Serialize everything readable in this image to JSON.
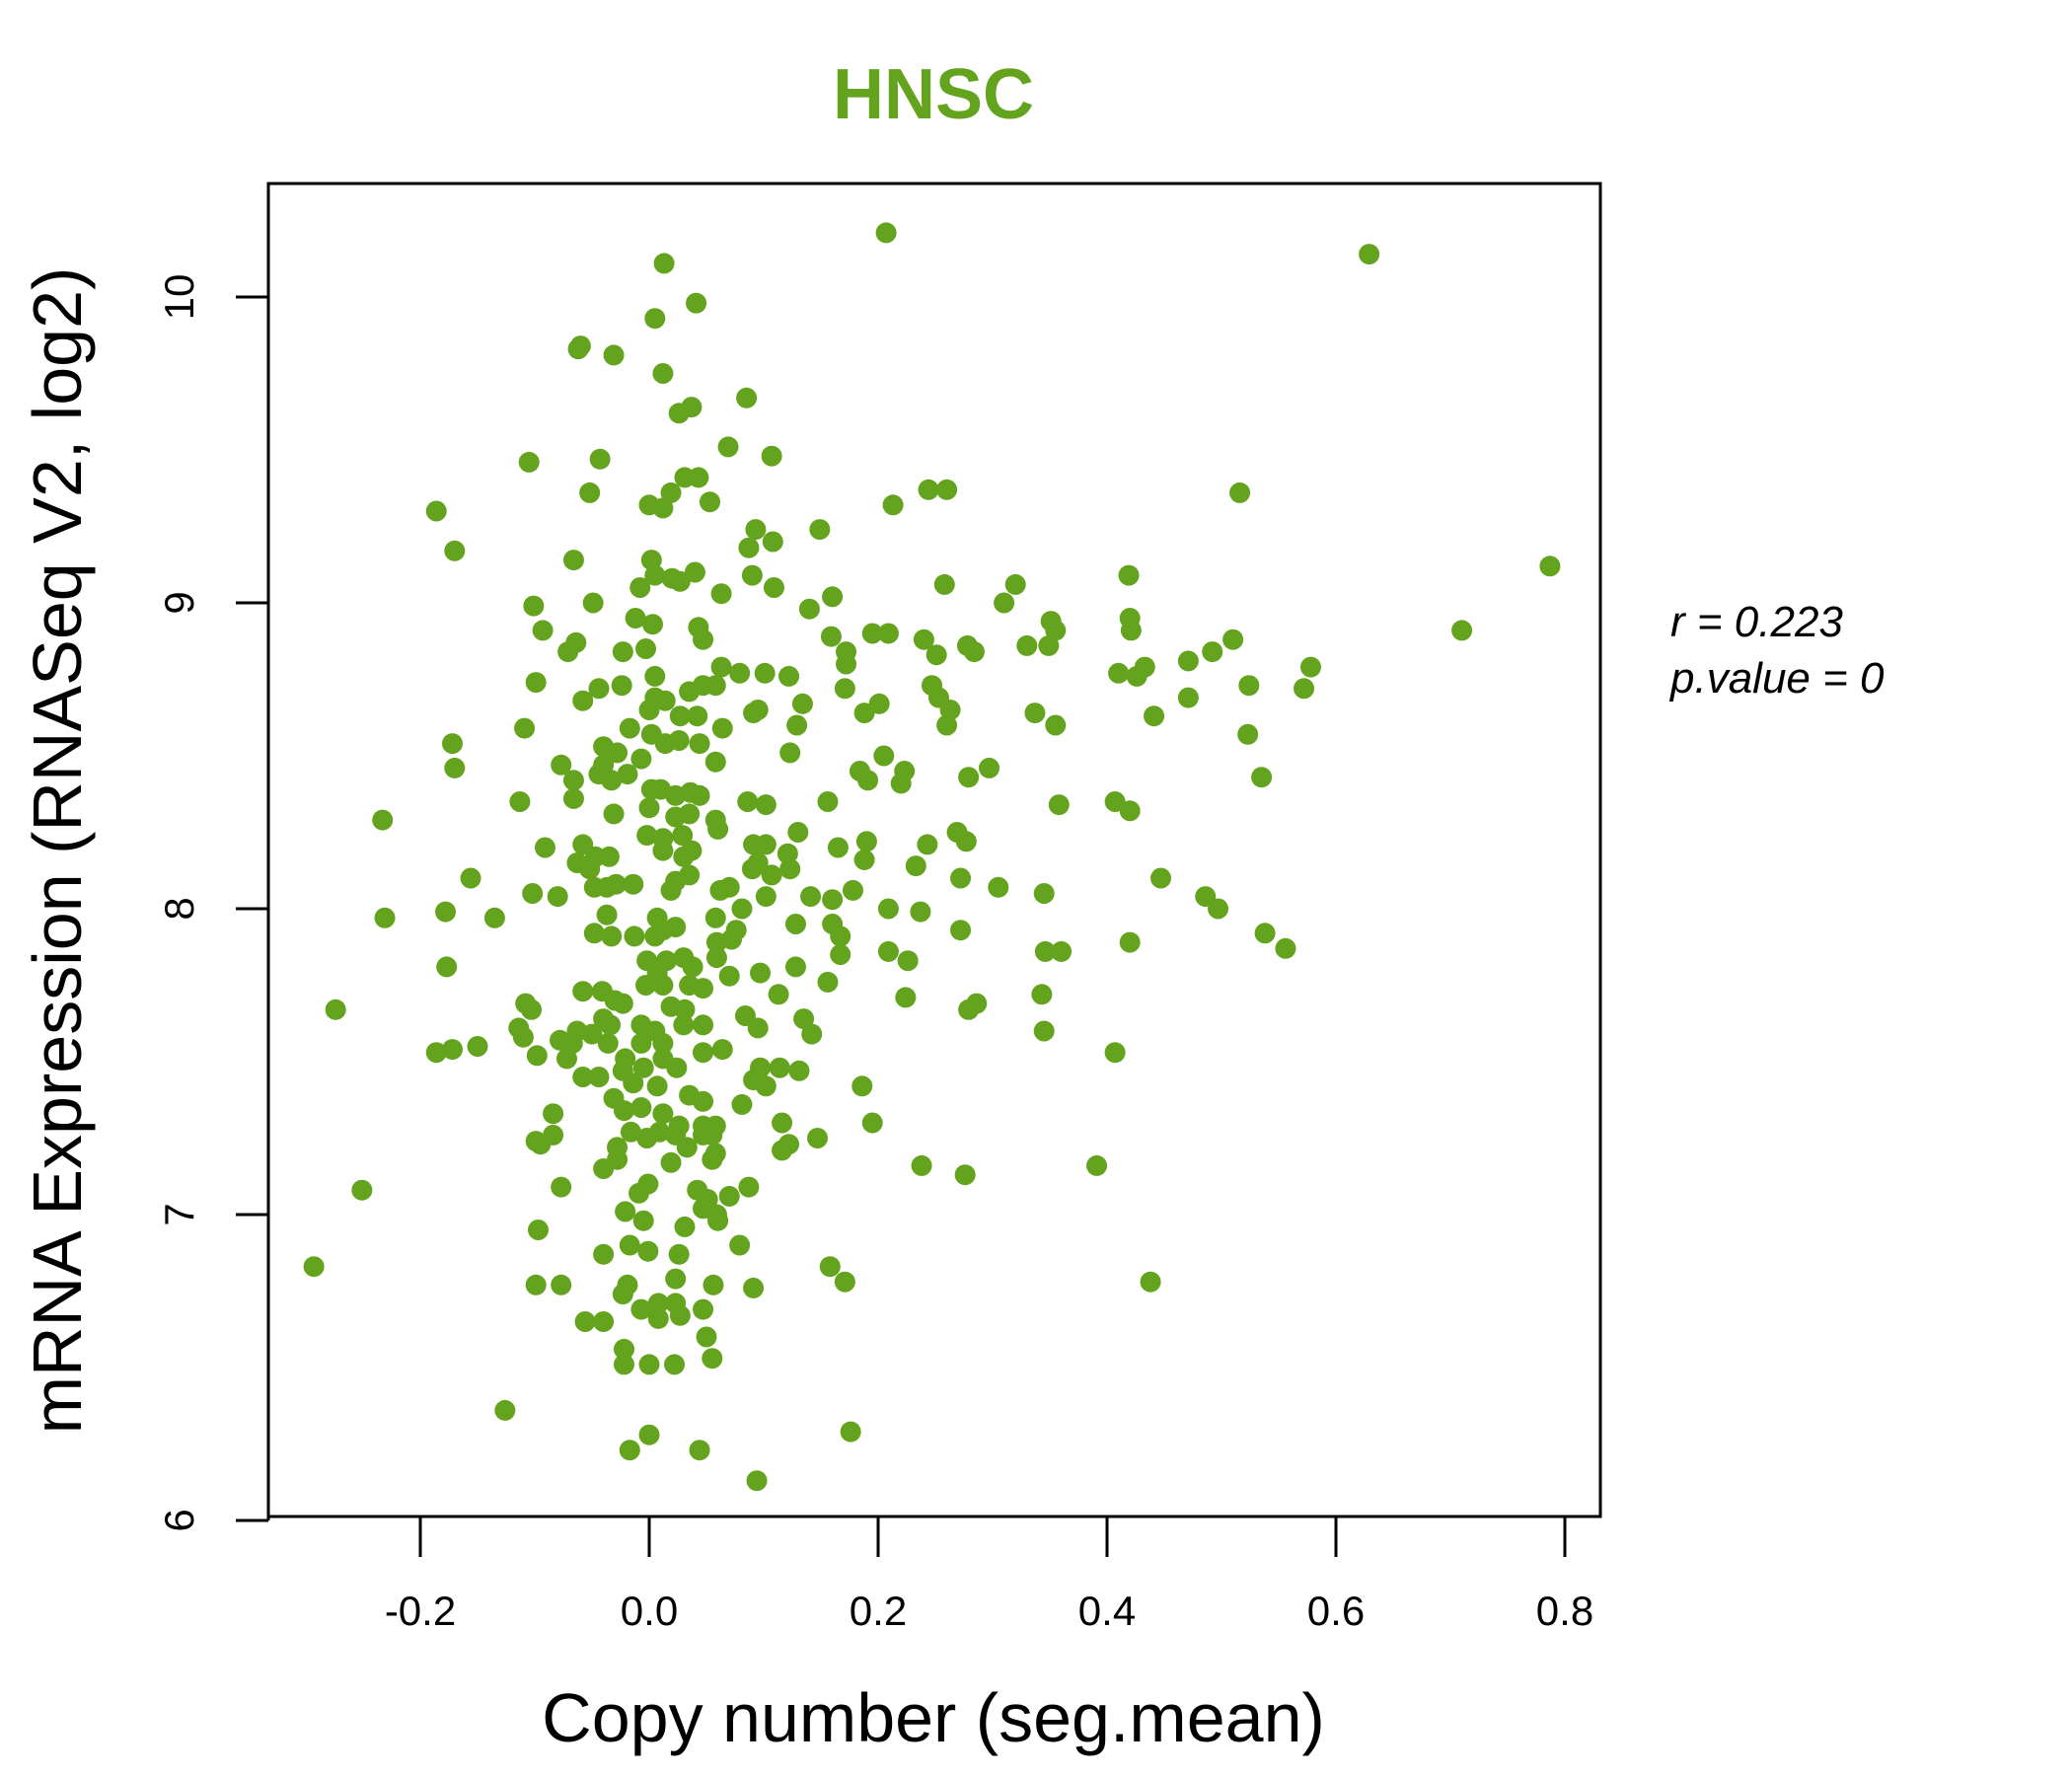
{
  "chart_data": {
    "type": "scatter",
    "title": "HNSC",
    "xlabel": "Copy number (seg.mean)",
    "ylabel": "mRNA Expression (RNASeq V2, log2)",
    "xlim": [
      -0.34,
      0.84
    ],
    "ylim": [
      6.0,
      10.4
    ],
    "x_ticks": [
      "-0.2",
      "0.0",
      "0.2",
      "0.4",
      "0.6",
      "0.8"
    ],
    "x_tick_values": [
      -0.2,
      0.0,
      0.2,
      0.4,
      0.6,
      0.8
    ],
    "y_ticks": [
      "6",
      "7",
      "8",
      "9",
      "10"
    ],
    "y_tick_values": [
      6,
      7,
      8,
      9,
      10
    ],
    "grid": false,
    "colors": {
      "title": "#64a31e",
      "points": "#64a31e"
    },
    "annotation": {
      "r_label": "r = 0.223",
      "p_label": "p.value = 0"
    },
    "points": [
      [
        0.629,
        10.14
      ],
      [
        0.207,
        10.21
      ],
      [
        0.013,
        10.11
      ],
      [
        0.041,
        9.98
      ],
      [
        0.005,
        9.93
      ],
      [
        -0.06,
        9.84
      ],
      [
        -0.062,
        9.83
      ],
      [
        -0.031,
        9.81
      ],
      [
        0.012,
        9.75
      ],
      [
        0.085,
        9.67
      ],
      [
        0.037,
        9.64
      ],
      [
        0.026,
        9.62
      ],
      [
        0.069,
        9.51
      ],
      [
        0.107,
        9.48
      ],
      [
        -0.105,
        9.46
      ],
      [
        -0.043,
        9.47
      ],
      [
        0.031,
        9.41
      ],
      [
        0.043,
        9.41
      ],
      [
        -0.052,
        9.36
      ],
      [
        0.019,
        9.36
      ],
      [
        0.0,
        9.32
      ],
      [
        0.012,
        9.31
      ],
      [
        0.053,
        9.33
      ],
      [
        -0.186,
        9.3
      ],
      [
        0.244,
        9.37
      ],
      [
        0.26,
        9.37
      ],
      [
        0.213,
        9.32
      ],
      [
        0.516,
        9.36
      ],
      [
        0.149,
        9.24
      ],
      [
        0.093,
        9.24
      ],
      [
        0.087,
        9.18
      ],
      [
        0.108,
        9.2
      ],
      [
        -0.17,
        9.17
      ],
      [
        -0.066,
        9.14
      ],
      [
        0.002,
        9.14
      ],
      [
        0.787,
        9.12
      ],
      [
        0.005,
        9.09
      ],
      [
        0.02,
        9.08
      ],
      [
        0.04,
        9.1
      ],
      [
        0.027,
        9.07
      ],
      [
        0.09,
        9.09
      ],
      [
        0.109,
        9.05
      ],
      [
        0.063,
        9.03
      ],
      [
        0.419,
        9.09
      ],
      [
        0.258,
        9.06
      ],
      [
        0.32,
        9.06
      ],
      [
        0.31,
        9.0
      ],
      [
        -0.101,
        8.99
      ],
      [
        -0.049,
        9.0
      ],
      [
        -0.008,
        9.05
      ],
      [
        0.16,
        9.02
      ],
      [
        0.14,
        8.98
      ],
      [
        -0.012,
        8.95
      ],
      [
        0.003,
        8.93
      ],
      [
        -0.093,
        8.91
      ],
      [
        0.71,
        8.91
      ],
      [
        0.195,
        8.9
      ],
      [
        0.209,
        8.9
      ],
      [
        0.159,
        8.89
      ],
      [
        0.24,
        8.88
      ],
      [
        0.42,
        8.95
      ],
      [
        0.421,
        8.91
      ],
      [
        0.51,
        8.88
      ],
      [
        0.351,
        8.94
      ],
      [
        0.355,
        8.91
      ],
      [
        0.043,
        8.92
      ],
      [
        0.047,
        8.88
      ],
      [
        -0.064,
        8.87
      ],
      [
        -0.071,
        8.84
      ],
      [
        -0.023,
        8.84
      ],
      [
        -0.003,
        8.85
      ],
      [
        0.278,
        8.86
      ],
      [
        0.284,
        8.84
      ],
      [
        0.33,
        8.86
      ],
      [
        0.251,
        8.83
      ],
      [
        0.349,
        8.86
      ],
      [
        0.492,
        8.84
      ],
      [
        0.471,
        8.81
      ],
      [
        0.172,
        8.84
      ],
      [
        0.172,
        8.8
      ],
      [
        0.063,
        8.79
      ],
      [
        0.079,
        8.77
      ],
      [
        0.101,
        8.77
      ],
      [
        0.41,
        8.77
      ],
      [
        0.433,
        8.79
      ],
      [
        0.426,
        8.76
      ],
      [
        0.578,
        8.79
      ],
      [
        0.572,
        8.72
      ],
      [
        0.524,
        8.73
      ],
      [
        -0.099,
        8.74
      ],
      [
        -0.024,
        8.73
      ],
      [
        -0.044,
        8.72
      ],
      [
        0.005,
        8.76
      ],
      [
        0.122,
        8.76
      ],
      [
        0.171,
        8.72
      ],
      [
        0.047,
        8.73
      ],
      [
        0.058,
        8.73
      ],
      [
        0.035,
        8.71
      ],
      [
        0.247,
        8.73
      ],
      [
        0.253,
        8.69
      ],
      [
        0.471,
        8.69
      ],
      [
        0.134,
        8.67
      ],
      [
        -0.058,
        8.68
      ],
      [
        0.005,
        8.69
      ],
      [
        0.014,
        8.68
      ],
      [
        0.0,
        8.65
      ],
      [
        0.095,
        8.65
      ],
      [
        0.091,
        8.64
      ],
      [
        0.188,
        8.64
      ],
      [
        0.201,
        8.67
      ],
      [
        0.263,
        8.65
      ],
      [
        0.26,
        8.6
      ],
      [
        0.337,
        8.64
      ],
      [
        0.441,
        8.63
      ],
      [
        0.027,
        8.63
      ],
      [
        0.042,
        8.63
      ],
      [
        0.129,
        8.6
      ],
      [
        0.355,
        8.6
      ],
      [
        0.064,
        8.59
      ],
      [
        -0.109,
        8.59
      ],
      [
        -0.017,
        8.59
      ],
      [
        0.002,
        8.57
      ],
      [
        0.014,
        8.54
      ],
      [
        0.026,
        8.55
      ],
      [
        -0.172,
        8.54
      ],
      [
        -0.17,
        8.46
      ],
      [
        0.523,
        8.57
      ],
      [
        -0.04,
        8.53
      ],
      [
        -0.028,
        8.51
      ],
      [
        0.044,
        8.54
      ],
      [
        0.123,
        8.51
      ],
      [
        0.205,
        8.5
      ],
      [
        0.058,
        8.48
      ],
      [
        -0.077,
        8.47
      ],
      [
        -0.007,
        8.49
      ],
      [
        0.297,
        8.46
      ],
      [
        -0.044,
        8.44
      ],
      [
        -0.033,
        8.42
      ],
      [
        -0.04,
        8.47
      ],
      [
        0.184,
        8.45
      ],
      [
        0.223,
        8.45
      ],
      [
        0.22,
        8.41
      ],
      [
        0.191,
        8.42
      ],
      [
        0.279,
        8.43
      ],
      [
        0.535,
        8.43
      ],
      [
        -0.066,
        8.42
      ],
      [
        -0.066,
        8.36
      ],
      [
        -0.019,
        8.44
      ],
      [
        0.002,
        8.39
      ],
      [
        0.01,
        8.39
      ],
      [
        0.023,
        8.37
      ],
      [
        0.036,
        8.38
      ],
      [
        0.044,
        8.37
      ],
      [
        0.0,
        8.33
      ],
      [
        0.086,
        8.35
      ],
      [
        0.102,
        8.34
      ],
      [
        0.156,
        8.35
      ],
      [
        0.407,
        8.35
      ],
      [
        0.358,
        8.34
      ],
      [
        0.42,
        8.32
      ],
      [
        -0.113,
        8.35
      ],
      [
        -0.233,
        8.29
      ],
      [
        -0.031,
        8.31
      ],
      [
        0.023,
        8.3
      ],
      [
        0.058,
        8.29
      ],
      [
        0.035,
        8.31
      ],
      [
        0.13,
        8.25
      ],
      [
        0.269,
        8.25
      ],
      [
        0.06,
        8.26
      ],
      [
        -0.002,
        8.24
      ],
      [
        0.012,
        8.23
      ],
      [
        0.029,
        8.24
      ],
      [
        0.277,
        8.22
      ],
      [
        0.243,
        8.21
      ],
      [
        0.19,
        8.22
      ],
      [
        0.091,
        8.21
      ],
      [
        0.102,
        8.21
      ],
      [
        0.095,
        8.15
      ],
      [
        0.165,
        8.2
      ],
      [
        -0.091,
        8.2
      ],
      [
        -0.058,
        8.21
      ],
      [
        -0.047,
        8.17
      ],
      [
        -0.063,
        8.15
      ],
      [
        -0.035,
        8.17
      ],
      [
        -0.052,
        8.13
      ],
      [
        0.012,
        8.19
      ],
      [
        0.03,
        8.17
      ],
      [
        0.037,
        8.19
      ],
      [
        0.121,
        8.18
      ],
      [
        0.123,
        8.13
      ],
      [
        0.233,
        8.14
      ],
      [
        0.188,
        8.16
      ],
      [
        0.09,
        8.13
      ],
      [
        0.107,
        8.11
      ],
      [
        -0.156,
        8.1
      ],
      [
        0.447,
        8.1
      ],
      [
        0.272,
        8.1
      ],
      [
        0.305,
        8.07
      ],
      [
        -0.102,
        8.05
      ],
      [
        -0.08,
        8.04
      ],
      [
        -0.029,
        8.08
      ],
      [
        -0.048,
        8.07
      ],
      [
        -0.037,
        8.07
      ],
      [
        -0.014,
        8.08
      ],
      [
        0.019,
        8.06
      ],
      [
        0.023,
        8.09
      ],
      [
        0.035,
        8.11
      ],
      [
        0.062,
        8.06
      ],
      [
        0.07,
        8.07
      ],
      [
        0.141,
        8.04
      ],
      [
        0.178,
        8.06
      ],
      [
        0.16,
        8.03
      ],
      [
        0.102,
        8.04
      ],
      [
        0.345,
        8.05
      ],
      [
        0.486,
        8.04
      ],
      [
        0.497,
        8.0
      ],
      [
        -0.178,
        7.99
      ],
      [
        -0.135,
        7.97
      ],
      [
        -0.231,
        7.97
      ],
      [
        -0.037,
        7.98
      ],
      [
        0.007,
        7.97
      ],
      [
        0.012,
        7.93
      ],
      [
        0.005,
        7.91
      ],
      [
        0.058,
        7.97
      ],
      [
        0.081,
        8.0
      ],
      [
        0.076,
        7.93
      ],
      [
        0.209,
        8.0
      ],
      [
        0.237,
        7.99
      ],
      [
        0.128,
        7.95
      ],
      [
        0.16,
        7.95
      ],
      [
        0.167,
        7.91
      ],
      [
        0.272,
        7.93
      ],
      [
        0.538,
        7.92
      ],
      [
        -0.048,
        7.92
      ],
      [
        -0.033,
        7.91
      ],
      [
        -0.013,
        7.91
      ],
      [
        0.023,
        7.94
      ],
      [
        0.42,
        7.89
      ],
      [
        0.059,
        7.89
      ],
      [
        0.072,
        7.9
      ],
      [
        0.209,
        7.86
      ],
      [
        0.346,
        7.86
      ],
      [
        0.36,
        7.86
      ],
      [
        0.556,
        7.87
      ],
      [
        0.167,
        7.85
      ],
      [
        -0.002,
        7.83
      ],
      [
        0.015,
        7.83
      ],
      [
        0.03,
        7.84
      ],
      [
        0.007,
        7.79
      ],
      [
        0.038,
        7.81
      ],
      [
        0.059,
        7.84
      ],
      [
        0.07,
        7.78
      ],
      [
        -0.177,
        7.81
      ],
      [
        0.128,
        7.81
      ],
      [
        0.097,
        7.79
      ],
      [
        0.226,
        7.83
      ],
      [
        0.156,
        7.76
      ],
      [
        -0.058,
        7.73
      ],
      [
        -0.041,
        7.73
      ],
      [
        -0.003,
        7.75
      ],
      [
        0.012,
        7.75
      ],
      [
        0.035,
        7.75
      ],
      [
        0.047,
        7.74
      ],
      [
        0.113,
        7.72
      ],
      [
        0.343,
        7.72
      ],
      [
        0.224,
        7.71
      ],
      [
        -0.108,
        7.69
      ],
      [
        -0.103,
        7.67
      ],
      [
        -0.03,
        7.7
      ],
      [
        -0.023,
        7.69
      ],
      [
        0.019,
        7.68
      ],
      [
        0.031,
        7.67
      ],
      [
        0.286,
        7.69
      ],
      [
        0.279,
        7.67
      ],
      [
        -0.274,
        7.67
      ],
      [
        -0.04,
        7.64
      ],
      [
        -0.034,
        7.62
      ],
      [
        0.084,
        7.65
      ],
      [
        -0.007,
        7.62
      ],
      [
        0.005,
        7.6
      ],
      [
        0.03,
        7.62
      ],
      [
        0.047,
        7.62
      ],
      [
        0.135,
        7.64
      ],
      [
        -0.114,
        7.61
      ],
      [
        0.345,
        7.6
      ],
      [
        0.095,
        7.61
      ],
      [
        -0.063,
        7.6
      ],
      [
        -0.05,
        7.59
      ],
      [
        -0.11,
        7.58
      ],
      [
        0.142,
        7.59
      ],
      [
        -0.007,
        7.56
      ],
      [
        0.012,
        7.56
      ],
      [
        -0.186,
        7.53
      ],
      [
        -0.172,
        7.54
      ],
      [
        -0.15,
        7.55
      ],
      [
        -0.078,
        7.57
      ],
      [
        -0.067,
        7.56
      ],
      [
        -0.072,
        7.51
      ],
      [
        -0.036,
        7.56
      ],
      [
        0.064,
        7.54
      ],
      [
        0.047,
        7.53
      ],
      [
        0.407,
        7.53
      ],
      [
        -0.098,
        7.52
      ],
      [
        -0.021,
        7.51
      ],
      [
        -0.023,
        7.47
      ],
      [
        -0.058,
        7.45
      ],
      [
        -0.044,
        7.45
      ],
      [
        -0.005,
        7.48
      ],
      [
        0.012,
        7.51
      ],
      [
        0.024,
        7.48
      ],
      [
        0.097,
        7.48
      ],
      [
        0.091,
        7.44
      ],
      [
        0.114,
        7.48
      ],
      [
        0.131,
        7.47
      ],
      [
        0.186,
        7.42
      ],
      [
        -0.014,
        7.43
      ],
      [
        0.007,
        7.42
      ],
      [
        -0.031,
        7.38
      ],
      [
        0.102,
        7.42
      ],
      [
        0.035,
        7.39
      ],
      [
        0.047,
        7.37
      ],
      [
        0.081,
        7.36
      ],
      [
        -0.022,
        7.34
      ],
      [
        -0.007,
        7.35
      ],
      [
        0.012,
        7.33
      ],
      [
        0.026,
        7.29
      ],
      [
        0.047,
        7.29
      ],
      [
        -0.084,
        7.33
      ],
      [
        0.116,
        7.3
      ],
      [
        0.195,
        7.3
      ],
      [
        0.058,
        7.29
      ],
      [
        -0.099,
        7.24
      ],
      [
        -0.095,
        7.23
      ],
      [
        -0.084,
        7.26
      ],
      [
        -0.016,
        7.27
      ],
      [
        -0.002,
        7.25
      ],
      [
        0.009,
        7.27
      ],
      [
        0.023,
        7.26
      ],
      [
        0.033,
        7.22
      ],
      [
        0.047,
        7.26
      ],
      [
        0.147,
        7.25
      ],
      [
        0.116,
        7.21
      ],
      [
        0.122,
        7.23
      ],
      [
        -0.028,
        7.22
      ],
      [
        0.058,
        7.2
      ],
      [
        0.019,
        7.17
      ],
      [
        -0.04,
        7.15
      ],
      [
        -0.028,
        7.18
      ],
      [
        0.055,
        7.26
      ],
      [
        0.055,
        7.18
      ],
      [
        0.238,
        7.16
      ],
      [
        0.391,
        7.16
      ],
      [
        0.276,
        7.13
      ],
      [
        -0.251,
        7.08
      ],
      [
        -0.077,
        7.09
      ],
      [
        -0.009,
        7.07
      ],
      [
        -0.001,
        7.1
      ],
      [
        0.087,
        7.09
      ],
      [
        0.042,
        7.08
      ],
      [
        0.051,
        7.05
      ],
      [
        0.07,
        7.06
      ],
      [
        -0.021,
        7.01
      ],
      [
        -0.005,
        6.98
      ],
      [
        0.047,
        7.02
      ],
      [
        0.059,
        7.0
      ],
      [
        0.031,
        6.96
      ],
      [
        0.06,
        6.98
      ],
      [
        -0.097,
        6.95
      ],
      [
        -0.017,
        6.9
      ],
      [
        -0.001,
        6.88
      ],
      [
        0.079,
        6.9
      ],
      [
        0.026,
        6.87
      ],
      [
        -0.04,
        6.87
      ],
      [
        0.158,
        6.83
      ],
      [
        -0.293,
        6.83
      ],
      [
        -0.099,
        6.77
      ],
      [
        -0.077,
        6.77
      ],
      [
        0.056,
        6.77
      ],
      [
        0.023,
        6.79
      ],
      [
        0.091,
        6.76
      ],
      [
        -0.019,
        6.77
      ],
      [
        0.171,
        6.78
      ],
      [
        0.438,
        6.78
      ],
      [
        -0.023,
        6.74
      ],
      [
        -0.007,
        6.69
      ],
      [
        0.008,
        6.71
      ],
      [
        0.023,
        6.71
      ],
      [
        0.008,
        6.66
      ],
      [
        0.027,
        6.67
      ],
      [
        0.047,
        6.69
      ],
      [
        -0.056,
        6.65
      ],
      [
        -0.04,
        6.65
      ],
      [
        0.05,
        6.6
      ],
      [
        -0.022,
        6.56
      ],
      [
        -0.022,
        6.51
      ],
      [
        0.0,
        6.51
      ],
      [
        0.022,
        6.51
      ],
      [
        0.055,
        6.53
      ],
      [
        -0.126,
        6.36
      ],
      [
        0.0,
        6.28
      ],
      [
        0.176,
        6.29
      ],
      [
        -0.017,
        6.23
      ],
      [
        0.044,
        6.23
      ],
      [
        0.094,
        6.13
      ]
    ]
  }
}
